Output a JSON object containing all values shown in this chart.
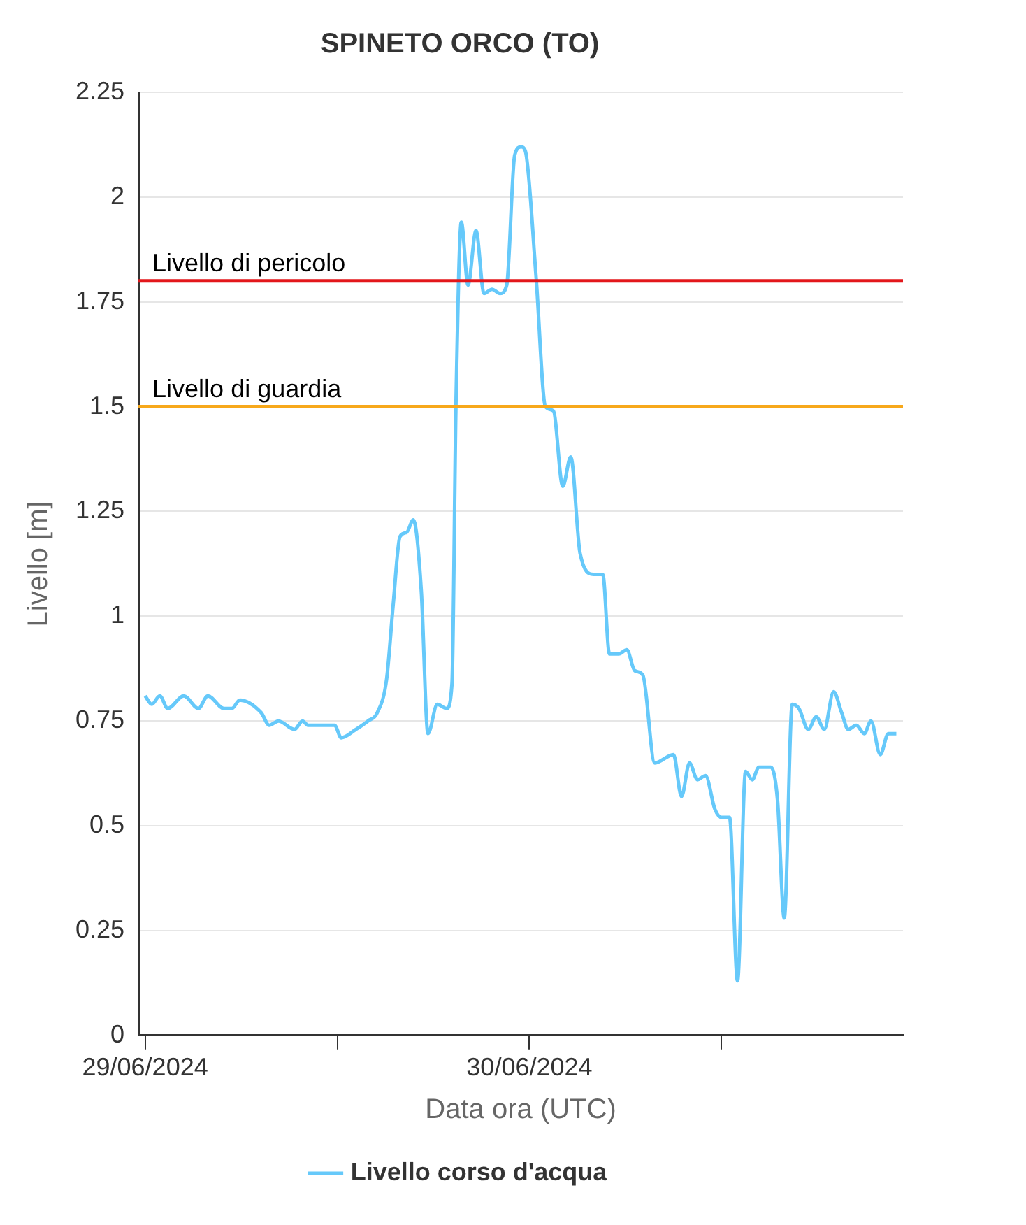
{
  "chart_data": {
    "type": "line",
    "title": "SPINETO ORCO (TO)",
    "xlabel": "Data ora (UTC)",
    "ylabel": "Livello [m]",
    "xlim": [
      "2024-06-28T23:35",
      "2024-06-30T23:20"
    ],
    "xticks": [
      {
        "value": "2024-06-29T00:00",
        "label": "29/06/2024"
      },
      {
        "value": "2024-06-29T12:00",
        "label": null
      },
      {
        "value": "2024-06-30T00:00",
        "label": "30/06/2024"
      },
      {
        "value": "2024-06-30T12:00",
        "label": null
      }
    ],
    "ylim": [
      0,
      2.25
    ],
    "yticks": [
      0,
      0.25,
      0.5,
      0.75,
      1,
      1.25,
      1.5,
      1.75,
      2,
      2.25
    ],
    "grid": "y",
    "legend": "bottom",
    "marker": "none",
    "line_style": "solid",
    "ref_lines": [
      {
        "axis": "y",
        "value": 1.8,
        "label": "Livello di pericolo",
        "color": "#e3171b"
      },
      {
        "axis": "y",
        "value": 1.5,
        "label": "Livello di guardia",
        "color": "#f7a81b"
      }
    ],
    "series": [
      {
        "name": "Livello corso d'acqua",
        "color": "#66c9fa",
        "x": [
          "2024-06-29T00:00",
          "2024-06-29T00:25",
          "2024-06-29T00:55",
          "2024-06-29T01:25",
          "2024-06-29T02:25",
          "2024-06-29T03:20",
          "2024-06-29T03:55",
          "2024-06-29T04:55",
          "2024-06-29T05:25",
          "2024-06-29T05:55",
          "2024-06-29T07:15",
          "2024-06-29T07:45",
          "2024-06-29T08:20",
          "2024-06-29T09:20",
          "2024-06-29T09:50",
          "2024-06-29T10:10",
          "2024-06-29T11:50",
          "2024-06-29T12:15",
          "2024-06-29T13:10",
          "2024-06-29T13:55",
          "2024-06-29T14:30",
          "2024-06-29T15:05",
          "2024-06-29T15:30",
          "2024-06-29T15:55",
          "2024-06-29T16:20",
          "2024-06-29T16:45",
          "2024-06-29T17:15",
          "2024-06-29T17:40",
          "2024-06-29T18:15",
          "2024-06-29T18:50",
          "2024-06-29T19:10",
          "2024-06-29T19:25",
          "2024-06-29T19:45",
          "2024-06-29T20:10",
          "2024-06-29T20:40",
          "2024-06-29T21:10",
          "2024-06-29T21:40",
          "2024-06-29T22:10",
          "2024-06-29T22:35",
          "2024-06-29T23:05",
          "2024-06-29T23:30",
          "2024-06-29T23:45",
          "2024-06-30T00:25",
          "2024-06-30T01:00",
          "2024-06-30T01:30",
          "2024-06-30T02:05",
          "2024-06-30T02:35",
          "2024-06-30T03:10",
          "2024-06-30T04:00",
          "2024-06-30T04:35",
          "2024-06-30T05:00",
          "2024-06-30T05:35",
          "2024-06-30T06:05",
          "2024-06-30T06:35",
          "2024-06-30T07:05",
          "2024-06-30T07:50",
          "2024-06-30T09:00",
          "2024-06-30T09:30",
          "2024-06-30T10:00",
          "2024-06-30T10:30",
          "2024-06-30T11:00",
          "2024-06-30T11:35",
          "2024-06-30T12:00",
          "2024-06-30T12:30",
          "2024-06-30T13:00",
          "2024-06-30T13:30",
          "2024-06-30T13:55",
          "2024-06-30T14:20",
          "2024-06-30T15:05",
          "2024-06-30T15:30",
          "2024-06-30T15:55",
          "2024-06-30T16:25",
          "2024-06-30T16:50",
          "2024-06-30T17:25",
          "2024-06-30T17:55",
          "2024-06-30T18:25",
          "2024-06-30T19:00",
          "2024-06-30T19:30",
          "2024-06-30T19:55",
          "2024-06-30T20:25",
          "2024-06-30T20:55",
          "2024-06-30T21:20",
          "2024-06-30T21:55",
          "2024-06-30T22:25",
          "2024-06-30T22:55"
        ],
        "values": [
          0.81,
          0.79,
          0.81,
          0.78,
          0.81,
          0.78,
          0.81,
          0.78,
          0.78,
          0.8,
          0.77,
          0.74,
          0.75,
          0.73,
          0.75,
          0.74,
          0.74,
          0.71,
          0.73,
          0.75,
          0.77,
          0.85,
          1.03,
          1.19,
          1.2,
          1.23,
          1.06,
          0.72,
          0.79,
          0.78,
          0.84,
          1.51,
          1.94,
          1.79,
          1.92,
          1.77,
          1.78,
          1.77,
          1.79,
          2.1,
          2.12,
          2.11,
          1.81,
          1.5,
          1.49,
          1.31,
          1.38,
          1.15,
          1.1,
          1.1,
          0.91,
          0.91,
          0.92,
          0.87,
          0.86,
          0.65,
          0.67,
          0.57,
          0.65,
          0.61,
          0.62,
          0.54,
          0.52,
          0.52,
          0.13,
          0.63,
          0.61,
          0.64,
          0.64,
          0.56,
          0.28,
          0.79,
          0.78,
          0.73,
          0.76,
          0.73,
          0.82,
          0.77,
          0.73,
          0.74,
          0.72,
          0.75,
          0.67,
          0.72,
          0.72
        ]
      }
    ]
  }
}
